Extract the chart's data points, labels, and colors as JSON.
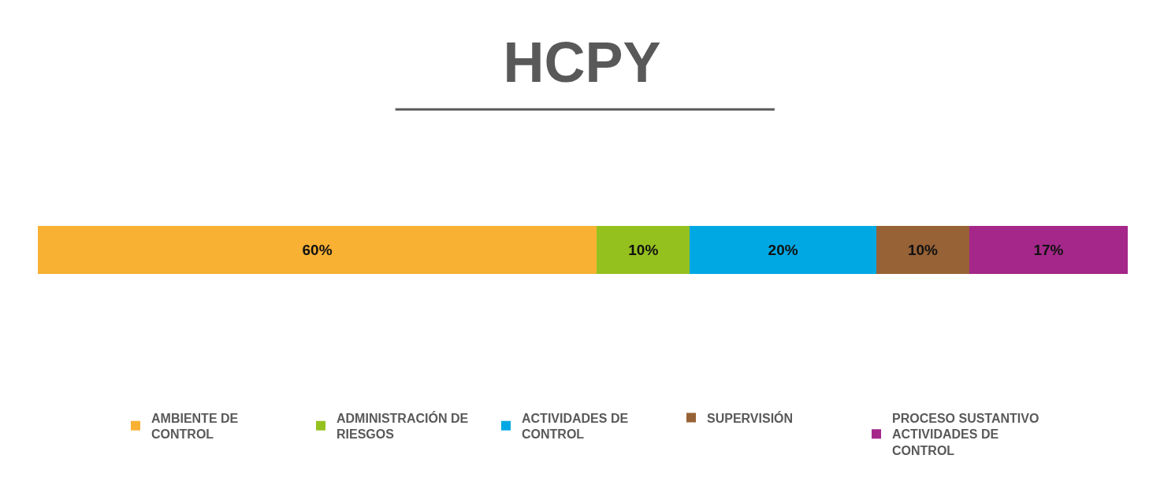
{
  "chart_data": {
    "type": "bar",
    "title": "HCPY",
    "orientation": "horizontal",
    "stacked": true,
    "categories": [
      null
    ],
    "xlim": [
      0,
      117
    ],
    "tick_labels": false,
    "legend": "bottom",
    "series": [
      {
        "name": "AMBIENTE DE CONTROL",
        "color": "#f8b133",
        "values": [
          60
        ],
        "value_labels": [
          "60%"
        ]
      },
      {
        "name": "ADMINISTRACIÓN DE RIESGOS",
        "color": "#95c11f",
        "values": [
          10
        ],
        "value_labels": [
          "10%"
        ]
      },
      {
        "name": "ACTIVIDADES DE CONTROL",
        "color": "#00a8e3",
        "values": [
          20
        ],
        "value_labels": [
          "20%"
        ]
      },
      {
        "name": "SUPERVISIÓN",
        "color": "#976236",
        "values": [
          10
        ],
        "value_labels": [
          "10%"
        ]
      },
      {
        "name": "PROCESO SUSTANTIVO ACTIVIDADES DE CONTROL",
        "color": "#a5278a",
        "values": [
          17
        ],
        "value_labels": [
          "17%"
        ]
      }
    ]
  }
}
